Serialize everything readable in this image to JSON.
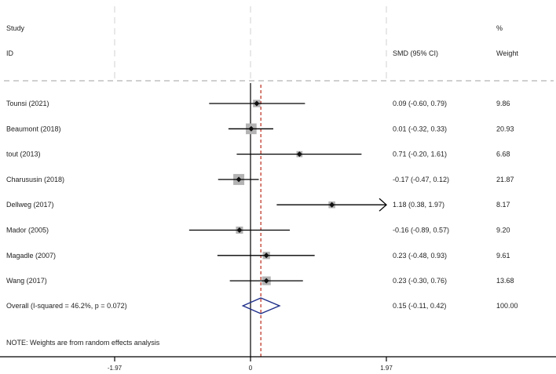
{
  "headers": {
    "study_line1": "Study",
    "study_line2": "ID",
    "effect": "SMD (95% CI)",
    "weight_line1": "%",
    "weight_line2": "Weight"
  },
  "footnote": "NOTE: Weights are from random effects analysis",
  "colors": {
    "text": "#222222",
    "line": "#000000",
    "box": "#b3b3b3",
    "diamond": "#1f2f8a",
    "overall_line": "#c0392b",
    "grid_dash": "#d0d0d0"
  },
  "chart_data": {
    "type": "forest",
    "xlim": [
      -1.97,
      1.97
    ],
    "xticks": [
      {
        "value": -1.97,
        "label": "-1.97"
      },
      {
        "value": 0,
        "label": "0"
      },
      {
        "value": 1.97,
        "label": "1.97"
      }
    ],
    "null_line": 0,
    "overall_line": 0.15,
    "studies": [
      {
        "name": "Tounsi (2021)",
        "est": 0.09,
        "lo": -0.6,
        "hi": 0.79,
        "ci_text": "0.09 (-0.60, 0.79)",
        "weight": 9.86,
        "weight_text": "9.86"
      },
      {
        "name": "Beaumont (2018)",
        "est": 0.01,
        "lo": -0.32,
        "hi": 0.33,
        "ci_text": "0.01 (-0.32, 0.33)",
        "weight": 20.93,
        "weight_text": "20.93"
      },
      {
        "name": "tout (2013)",
        "est": 0.71,
        "lo": -0.2,
        "hi": 1.61,
        "ci_text": "0.71 (-0.20, 1.61)",
        "weight": 6.68,
        "weight_text": "6.68"
      },
      {
        "name": "Charususin (2018)",
        "est": -0.17,
        "lo": -0.47,
        "hi": 0.12,
        "ci_text": "-0.17 (-0.47, 0.12)",
        "weight": 21.87,
        "weight_text": "21.87"
      },
      {
        "name": "Dellweg (2017)",
        "est": 1.18,
        "lo": 0.38,
        "hi": 1.97,
        "ci_text": "1.18 (0.38, 1.97)",
        "weight": 8.17,
        "weight_text": "8.17",
        "arrow_right": true
      },
      {
        "name": "Mador (2005)",
        "est": -0.16,
        "lo": -0.89,
        "hi": 0.57,
        "ci_text": "-0.16 (-0.89, 0.57)",
        "weight": 9.2,
        "weight_text": "9.20"
      },
      {
        "name": "Magadle (2007)",
        "est": 0.23,
        "lo": -0.48,
        "hi": 0.93,
        "ci_text": "0.23 (-0.48, 0.93)",
        "weight": 9.61,
        "weight_text": "9.61"
      },
      {
        "name": "Wang (2017)",
        "est": 0.23,
        "lo": -0.3,
        "hi": 0.76,
        "ci_text": "0.23 (-0.30, 0.76)",
        "weight": 13.68,
        "weight_text": "13.68"
      }
    ],
    "overall": {
      "name": "Overall  (I-squared = 46.2%, p = 0.072)",
      "est": 0.15,
      "lo": -0.11,
      "hi": 0.42,
      "ci_text": "0.15 (-0.11, 0.42)",
      "weight": 100.0,
      "weight_text": "100.00"
    }
  }
}
